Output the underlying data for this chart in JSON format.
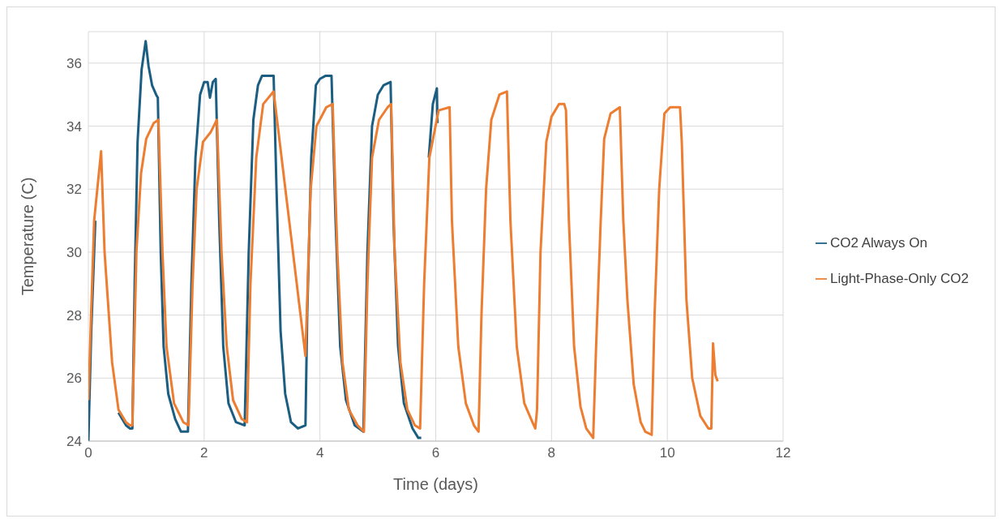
{
  "chart_data": {
    "type": "line",
    "xlabel": "Time (days)",
    "ylabel": "Temperature (C)",
    "xlim": [
      0,
      12
    ],
    "xticks": [
      0,
      2,
      4,
      6,
      8,
      10,
      12
    ],
    "ylim": [
      24,
      37
    ],
    "yticks": [
      24,
      26,
      28,
      30,
      32,
      34,
      36
    ],
    "grid": true,
    "legend": "right",
    "marker": "none",
    "line_style": "solid",
    "series": [
      {
        "name": "CO2 Always On",
        "color": "#1b5e82",
        "x": [
          0,
          0.05,
          0.12,
          0.22,
          0.28,
          0.41,
          0.52,
          0.65,
          0.72,
          0.76,
          0.8,
          0.85,
          0.92,
          0.99,
          1.04,
          1.1,
          1.17,
          1.2,
          1.25,
          1.3,
          1.38,
          1.5,
          1.6,
          1.72,
          1.78,
          1.85,
          1.93,
          2.0,
          2.06,
          2.1,
          2.15,
          2.2,
          2.26,
          2.33,
          2.42,
          2.55,
          2.7,
          2.77,
          2.85,
          2.93,
          3.0,
          3.1,
          3.2,
          3.25,
          3.32,
          3.4,
          3.5,
          3.62,
          3.75,
          3.78,
          3.85,
          3.93,
          4.0,
          4.1,
          4.2,
          4.27,
          4.35,
          4.45,
          4.6,
          4.75,
          4.82,
          4.9,
          5.0,
          5.1,
          5.22,
          5.27,
          5.35,
          5.45,
          5.6,
          5.7,
          5.75,
          5.8,
          5.88,
          5.95,
          6.02,
          6.03
        ],
        "values": [
          24.0,
          27.5,
          31,
          null,
          null,
          null,
          24.9,
          24.5,
          24.4,
          24.4,
          29,
          33.5,
          35.8,
          36.7,
          35.9,
          35.3,
          35.0,
          34.9,
          30,
          27,
          25.5,
          24.7,
          24.3,
          24.3,
          29,
          33,
          35.0,
          35.4,
          35.4,
          34.9,
          35.4,
          35.5,
          31,
          27,
          25.2,
          24.6,
          24.5,
          30,
          34.2,
          35.3,
          35.6,
          35.6,
          35.6,
          32,
          27.5,
          25.5,
          24.6,
          24.4,
          24.5,
          28,
          33,
          35.3,
          35.5,
          35.6,
          35.6,
          31,
          27,
          25.3,
          24.5,
          24.3,
          30,
          34,
          35.0,
          35.3,
          35.4,
          31,
          27,
          25.2,
          24.4,
          24.1,
          24.1,
          null,
          33,
          34.7,
          35.2,
          34.1
        ]
      },
      {
        "name": "Light-Phase-Only CO2",
        "color": "#ed7d31",
        "x": [
          0,
          0.1,
          0.22,
          0.28,
          0.41,
          0.52,
          0.65,
          0.72,
          0.76,
          0.83,
          0.91,
          1.0,
          1.13,
          1.21,
          1.28,
          1.35,
          1.48,
          1.64,
          1.73,
          1.8,
          1.87,
          1.98,
          2.11,
          2.22,
          2.3,
          2.39,
          2.5,
          2.65,
          2.74,
          2.8,
          2.9,
          3.02,
          3.2,
          3.75,
          3.84,
          3.94,
          4.11,
          4.22,
          4.3,
          4.39,
          4.5,
          4.65,
          4.76,
          4.82,
          4.9,
          5.02,
          5.17,
          5.23,
          5.29,
          5.39,
          5.51,
          5.64,
          5.73,
          5.8,
          5.89,
          6.05,
          6.24,
          6.28,
          6.39,
          6.52,
          6.66,
          6.74,
          6.79,
          6.87,
          6.96,
          7.1,
          7.23,
          7.29,
          7.4,
          7.53,
          7.67,
          7.72,
          7.75,
          7.81,
          7.91,
          8.0,
          8.13,
          8.22,
          8.25,
          8.3,
          8.39,
          8.5,
          8.6,
          8.72,
          8.77,
          8.85,
          8.91,
          9.02,
          9.18,
          9.24,
          9.31,
          9.42,
          9.54,
          9.62,
          9.73,
          9.78,
          9.86,
          9.95,
          10.05,
          10.22,
          10.25,
          10.33,
          10.43,
          10.57,
          10.71,
          10.76,
          10.79,
          10.83,
          10.87
        ],
        "values": [
          25.3,
          31,
          33.2,
          30,
          26.5,
          25.0,
          24.6,
          24.5,
          24.5,
          30,
          32.5,
          33.6,
          34.1,
          34.2,
          30,
          27,
          25.2,
          24.6,
          24.5,
          29,
          32,
          33.5,
          33.8,
          34.2,
          30,
          27,
          25.3,
          24.7,
          24.6,
          29,
          33,
          34.7,
          35.1,
          26.7,
          32,
          34.0,
          34.6,
          34.7,
          30,
          26.5,
          25.0,
          24.5,
          24.3,
          29,
          33,
          34.2,
          34.6,
          34.7,
          30,
          26.5,
          25.0,
          24.5,
          24.4,
          29,
          33,
          34.5,
          34.6,
          31,
          27,
          25.2,
          24.5,
          24.3,
          28,
          32,
          34.2,
          35.0,
          35.1,
          31,
          27,
          25.2,
          24.6,
          24.4,
          25,
          30,
          33.5,
          34.3,
          34.7,
          34.7,
          34.5,
          31,
          27,
          25.1,
          24.4,
          24.1,
          27,
          31,
          33.6,
          34.4,
          34.6,
          31,
          28.5,
          25.8,
          24.6,
          24.3,
          24.2,
          28,
          32,
          34.4,
          34.6,
          34.6,
          33.5,
          28.5,
          26,
          24.8,
          24.4,
          24.4,
          27.1,
          26.1,
          25.9
        ]
      }
    ]
  }
}
